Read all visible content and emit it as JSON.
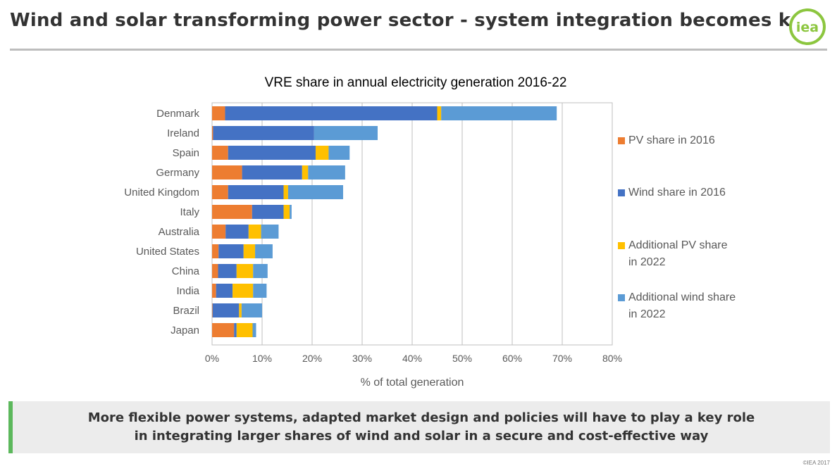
{
  "slide": {
    "title": "Wind and solar transforming power sector - system integration becomes key",
    "logo_text": "iea",
    "callout_line1": "More flexible power systems, adapted market design and policies will have to play a key role",
    "callout_line2": "in integrating larger shares of wind and solar in a secure and cost-effective way",
    "copyright": "©IEA 2017"
  },
  "colors": {
    "pv_2016": "#ED7D31",
    "wind_2016": "#4472C4",
    "pv_add_2022": "#FFC000",
    "wind_add_2022": "#5B9BD5",
    "gridline": "#bfbfbf",
    "text": "#595959",
    "logo_green": "#8cc63f"
  },
  "chart_data": {
    "type": "bar",
    "orientation": "horizontal",
    "stacked": true,
    "title": "VRE share in annual electricity generation 2016-22",
    "xlabel": "% of total generation",
    "ylabel": "",
    "xlim": [
      0,
      80
    ],
    "x_ticks": [
      "0%",
      "10%",
      "20%",
      "30%",
      "40%",
      "50%",
      "60%",
      "70%",
      "80%"
    ],
    "grid": "vertical",
    "legend_position": "right",
    "categories": [
      "Denmark",
      "Ireland",
      "Spain",
      "Germany",
      "United Kingdom",
      "Italy",
      "Australia",
      "United States",
      "China",
      "India",
      "Brazil",
      "Japan"
    ],
    "series": [
      {
        "name": "PV share in 2016",
        "color_key": "pv_2016",
        "values": [
          2.6,
          0.2,
          3.2,
          6.0,
          3.2,
          8.0,
          2.7,
          1.3,
          1.2,
          0.8,
          0.1,
          4.4
        ]
      },
      {
        "name": "Wind share in 2016",
        "color_key": "wind_2016",
        "values": [
          42.4,
          20.2,
          17.5,
          12.0,
          11.1,
          6.3,
          4.6,
          5.0,
          3.7,
          3.3,
          5.3,
          0.5
        ]
      },
      {
        "name": "Additional  PV share in 2022",
        "color_key": "pv_add_2022",
        "values": [
          0.8,
          0.0,
          2.6,
          1.2,
          0.9,
          1.2,
          2.5,
          2.3,
          3.3,
          4.1,
          0.5,
          3.2
        ]
      },
      {
        "name": "Additional  wind share in 2022",
        "color_key": "wind_add_2022",
        "values": [
          23.1,
          12.7,
          4.2,
          7.4,
          11.0,
          0.4,
          3.5,
          3.5,
          2.9,
          2.7,
          4.1,
          0.7
        ]
      }
    ],
    "legend": [
      {
        "lines": [
          "PV share in 2016"
        ],
        "color_key": "pv_2016"
      },
      {
        "lines": [
          "Wind share  in 2016"
        ],
        "color_key": "wind_2016"
      },
      {
        "lines": [
          "Additional  PV share",
          "in 2022"
        ],
        "color_key": "pv_add_2022"
      },
      {
        "lines": [
          "Additional  wind share",
          "in 2022"
        ],
        "color_key": "wind_add_2022"
      }
    ]
  }
}
